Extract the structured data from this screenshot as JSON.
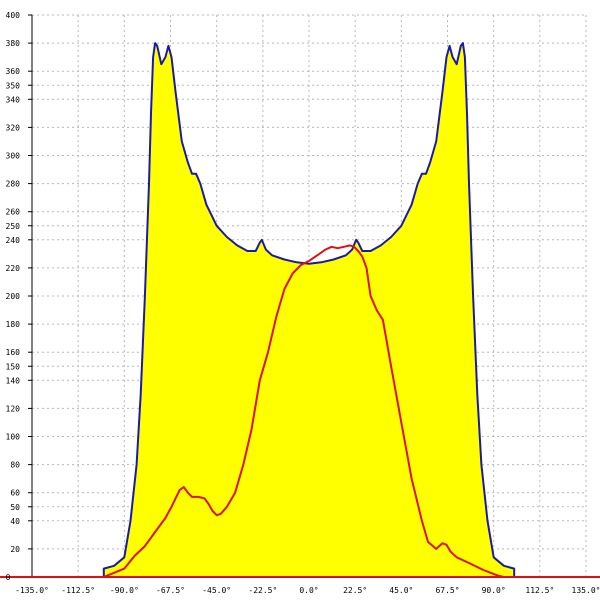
{
  "chart_data": {
    "type": "area",
    "title": "",
    "xlabel": "",
    "ylabel": "",
    "xlim": [
      -135,
      135
    ],
    "ylim": [
      0,
      400
    ],
    "grid": true,
    "x_ticks": [
      {
        "value": -135,
        "label": "-135.0°"
      },
      {
        "value": -112.5,
        "label": "-112.5°"
      },
      {
        "value": -90,
        "label": "-90.0°"
      },
      {
        "value": -67.5,
        "label": "-67.5°"
      },
      {
        "value": -45,
        "label": "-45.0°"
      },
      {
        "value": -22.5,
        "label": "-22.5°"
      },
      {
        "value": 0,
        "label": "0.0°"
      },
      {
        "value": 22.5,
        "label": "22.5°"
      },
      {
        "value": 45,
        "label": "45.0°"
      },
      {
        "value": 67.5,
        "label": "67.5°"
      },
      {
        "value": 90,
        "label": "90.0°"
      },
      {
        "value": 112.5,
        "label": "112.5°"
      },
      {
        "value": 135,
        "label": "135.0°"
      }
    ],
    "y_ticks": [
      20,
      40,
      50,
      60,
      80,
      100,
      120,
      140,
      150,
      160,
      180,
      200,
      220,
      240,
      250,
      260,
      280,
      300,
      320,
      340,
      350,
      360,
      380,
      400
    ],
    "series": [
      {
        "color": "#1a1aa8",
        "fill": "#ffff00",
        "points": [
          [
            -100,
            0
          ],
          [
            -100,
            6
          ],
          [
            -95,
            8
          ],
          [
            -90,
            14
          ],
          [
            -87,
            40
          ],
          [
            -84,
            80
          ],
          [
            -82,
            130
          ],
          [
            -80,
            200
          ],
          [
            -78,
            280
          ],
          [
            -77,
            330
          ],
          [
            -76,
            370
          ],
          [
            -75,
            380
          ],
          [
            -74,
            378
          ],
          [
            -72,
            365
          ],
          [
            -70,
            370
          ],
          [
            -68.5,
            378
          ],
          [
            -67,
            370
          ],
          [
            -65,
            345
          ],
          [
            -62,
            310
          ],
          [
            -59,
            295
          ],
          [
            -57,
            287
          ],
          [
            -55,
            287
          ],
          [
            -53,
            280
          ],
          [
            -50,
            265
          ],
          [
            -45,
            250
          ],
          [
            -40,
            242
          ],
          [
            -35,
            236
          ],
          [
            -30,
            232
          ],
          [
            -26,
            232
          ],
          [
            -24,
            238
          ],
          [
            -23,
            240
          ],
          [
            -21,
            233
          ],
          [
            -18,
            229
          ],
          [
            -12,
            226
          ],
          [
            -6,
            224
          ],
          [
            0,
            223
          ],
          [
            6,
            224
          ],
          [
            12,
            226
          ],
          [
            18,
            229
          ],
          [
            21,
            233
          ],
          [
            23,
            240
          ],
          [
            24,
            238
          ],
          [
            26,
            232
          ],
          [
            30,
            232
          ],
          [
            35,
            236
          ],
          [
            40,
            242
          ],
          [
            45,
            250
          ],
          [
            50,
            265
          ],
          [
            53,
            280
          ],
          [
            55,
            287
          ],
          [
            57,
            287
          ],
          [
            59,
            295
          ],
          [
            62,
            310
          ],
          [
            65,
            345
          ],
          [
            67,
            370
          ],
          [
            68.5,
            378
          ],
          [
            70,
            370
          ],
          [
            72,
            365
          ],
          [
            74,
            378
          ],
          [
            75,
            380
          ],
          [
            76,
            370
          ],
          [
            77,
            330
          ],
          [
            78,
            280
          ],
          [
            80,
            200
          ],
          [
            82,
            130
          ],
          [
            84,
            80
          ],
          [
            87,
            40
          ],
          [
            90,
            14
          ],
          [
            95,
            8
          ],
          [
            100,
            6
          ],
          [
            100,
            0
          ]
        ]
      },
      {
        "color": "#e01010",
        "fill": "none",
        "points": [
          [
            -100,
            0
          ],
          [
            -95,
            3
          ],
          [
            -90,
            6
          ],
          [
            -85,
            15
          ],
          [
            -80,
            22
          ],
          [
            -75,
            32
          ],
          [
            -70,
            42
          ],
          [
            -67,
            50
          ],
          [
            -65,
            56
          ],
          [
            -63,
            62
          ],
          [
            -61,
            64
          ],
          [
            -59,
            60
          ],
          [
            -57,
            57
          ],
          [
            -54,
            57
          ],
          [
            -51,
            56
          ],
          [
            -49,
            52
          ],
          [
            -47,
            47
          ],
          [
            -45,
            44
          ],
          [
            -43,
            45
          ],
          [
            -40,
            50
          ],
          [
            -36,
            60
          ],
          [
            -32,
            80
          ],
          [
            -28,
            105
          ],
          [
            -24,
            140
          ],
          [
            -20,
            160
          ],
          [
            -16,
            185
          ],
          [
            -12,
            205
          ],
          [
            -8,
            216
          ],
          [
            -4,
            222
          ],
          [
            0,
            225
          ],
          [
            5,
            230
          ],
          [
            8,
            233
          ],
          [
            11,
            235
          ],
          [
            14,
            234
          ],
          [
            17,
            235
          ],
          [
            20,
            236
          ],
          [
            22,
            235
          ],
          [
            24,
            232
          ],
          [
            26,
            228
          ],
          [
            28,
            220
          ],
          [
            30,
            200
          ],
          [
            33,
            190
          ],
          [
            36,
            183
          ],
          [
            40,
            150
          ],
          [
            45,
            110
          ],
          [
            50,
            70
          ],
          [
            55,
            40
          ],
          [
            58,
            25
          ],
          [
            62,
            20
          ],
          [
            65,
            24
          ],
          [
            67,
            23
          ],
          [
            69,
            18
          ],
          [
            72,
            14
          ],
          [
            78,
            10
          ],
          [
            85,
            5
          ],
          [
            92,
            1
          ],
          [
            95,
            0
          ]
        ]
      }
    ]
  }
}
